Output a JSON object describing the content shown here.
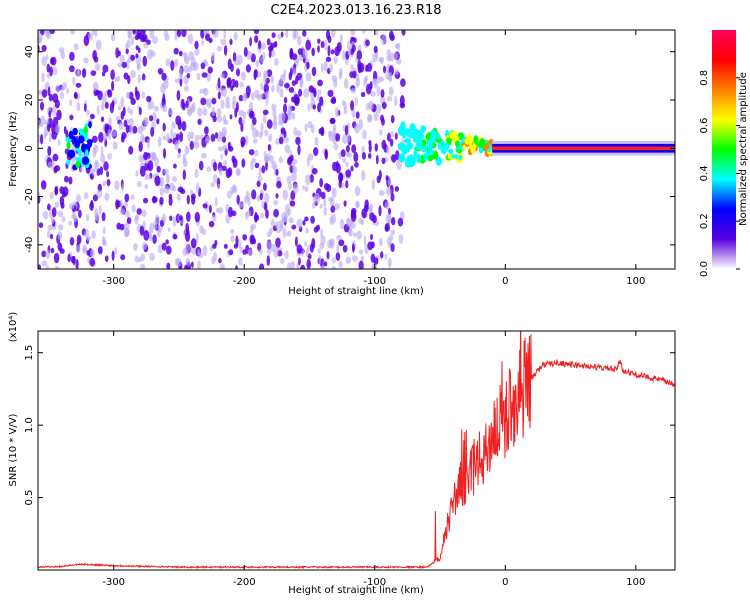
{
  "title": "C2E4.2023.013.16.23.R18",
  "chart_data": [
    {
      "type": "heatmap",
      "title": "C2E4.2023.013.16.23.R18",
      "xlabel": "Height of straight line (km)",
      "ylabel": "Frequency (Hz)",
      "xlim": [
        -358,
        130
      ],
      "ylim": [
        -50,
        49
      ],
      "x_ticks": [
        -300,
        -200,
        -100,
        0,
        100
      ],
      "x_tick_labels": [
        "-300",
        "-200",
        "-100",
        "0",
        "100"
      ],
      "y_ticks": [
        -40,
        -20,
        0,
        20,
        40
      ],
      "y_tick_labels": [
        "-40",
        "-20",
        "0",
        "20",
        "40"
      ],
      "regions": [
        {
          "name": "broadband noise",
          "x_range": [
            -358,
            -78
          ],
          "freq_range": [
            -50,
            49
          ],
          "amplitude": 0.15
        },
        {
          "name": "near-zero blob",
          "x_range": [
            -335,
            -318
          ],
          "freq_range": [
            -8,
            10
          ],
          "amplitude": 0.3
        },
        {
          "name": "tapering transition",
          "x_range": [
            -80,
            -10
          ],
          "freq_range": [
            -8,
            10
          ],
          "amplitude": 0.55
        },
        {
          "name": "narrowband line",
          "x_range": [
            -10,
            130
          ],
          "freq_range": [
            -2,
            2
          ],
          "amplitude": 0.95
        }
      ]
    },
    {
      "type": "colorbar",
      "label": "Normalized spectral amplitude",
      "range": [
        0,
        1
      ],
      "ticks": [
        0,
        0.2,
        0.4,
        0.6,
        0.8
      ],
      "tick_labels": [
        "0.0",
        "0.2",
        "0.4",
        "0.6",
        "0.8"
      ],
      "colormap": [
        "#ffffff",
        "#5500dd",
        "#0000ff",
        "#00ffff",
        "#00ff00",
        "#ffff00",
        "#ff8000",
        "#ff0000",
        "#ff0060"
      ]
    },
    {
      "type": "line",
      "xlabel": "Height of straight line (km)",
      "ylabel": "SNR (10 * V/V)",
      "y_scale_label": "(x10⁴)",
      "xlim": [
        -358,
        130
      ],
      "ylim": [
        0,
        1.65
      ],
      "x_ticks": [
        -300,
        -200,
        -100,
        0,
        100
      ],
      "x_tick_labels": [
        "-300",
        "-200",
        "-100",
        "0",
        "100"
      ],
      "y_ticks": [
        0.5,
        1.0,
        1.5
      ],
      "y_tick_labels": [
        "0.5",
        "1.0",
        "1.5"
      ],
      "series": [
        {
          "name": "SNR",
          "color": "#ee2222",
          "x": [
            -358,
            -340,
            -325,
            -300,
            -250,
            -200,
            -150,
            -100,
            -60,
            -50,
            -45,
            -40,
            -35,
            -30,
            -25,
            -20,
            -15,
            -10,
            -5,
            0,
            5,
            10,
            15,
            20,
            25,
            30,
            40,
            50,
            60,
            70,
            80,
            85,
            88,
            90,
            95,
            100,
            110,
            120,
            130
          ],
          "values": [
            0.02,
            0.025,
            0.04,
            0.03,
            0.02,
            0.02,
            0.02,
            0.02,
            0.02,
            0.08,
            0.3,
            0.45,
            0.6,
            0.55,
            0.7,
            0.75,
            0.8,
            0.95,
            1.0,
            1.05,
            1.15,
            1.2,
            1.28,
            1.32,
            1.38,
            1.42,
            1.43,
            1.42,
            1.41,
            1.4,
            1.39,
            1.38,
            1.45,
            1.38,
            1.36,
            1.35,
            1.33,
            1.31,
            1.28
          ]
        }
      ]
    }
  ]
}
